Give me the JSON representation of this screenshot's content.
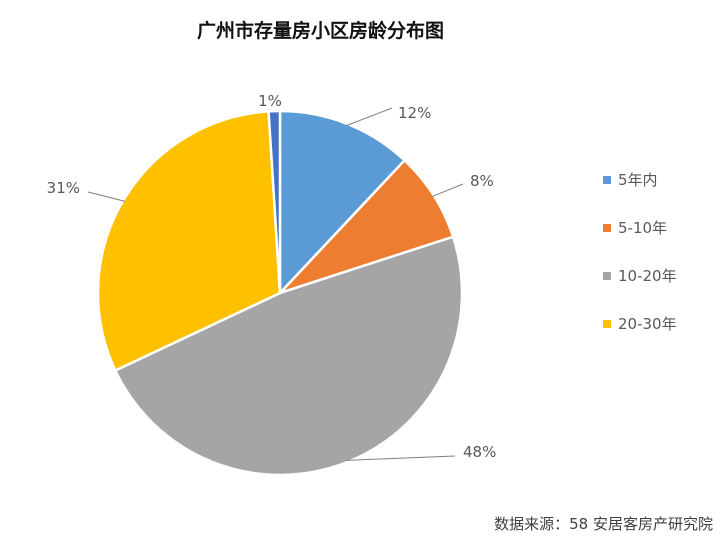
{
  "chart_data": {
    "type": "pie",
    "title": "广州市存量房小区房龄分布图",
    "categories": [
      "5年内",
      "5-10年",
      "10-20年",
      "20-30年",
      ""
    ],
    "values": [
      12,
      8,
      48,
      31,
      1
    ],
    "data_labels": [
      "12%",
      "8%",
      "48%",
      "31%",
      "1%"
    ],
    "colors": [
      "#5B9BD5",
      "#ED7D31",
      "#A5A5A5",
      "#FFC000",
      "#4472C4"
    ],
    "legend": {
      "placement": "right",
      "entries": [
        "5年内",
        "5-10年",
        "10-20年",
        "20-30年"
      ]
    }
  },
  "source": "数据来源：58 安居客房产研究院"
}
